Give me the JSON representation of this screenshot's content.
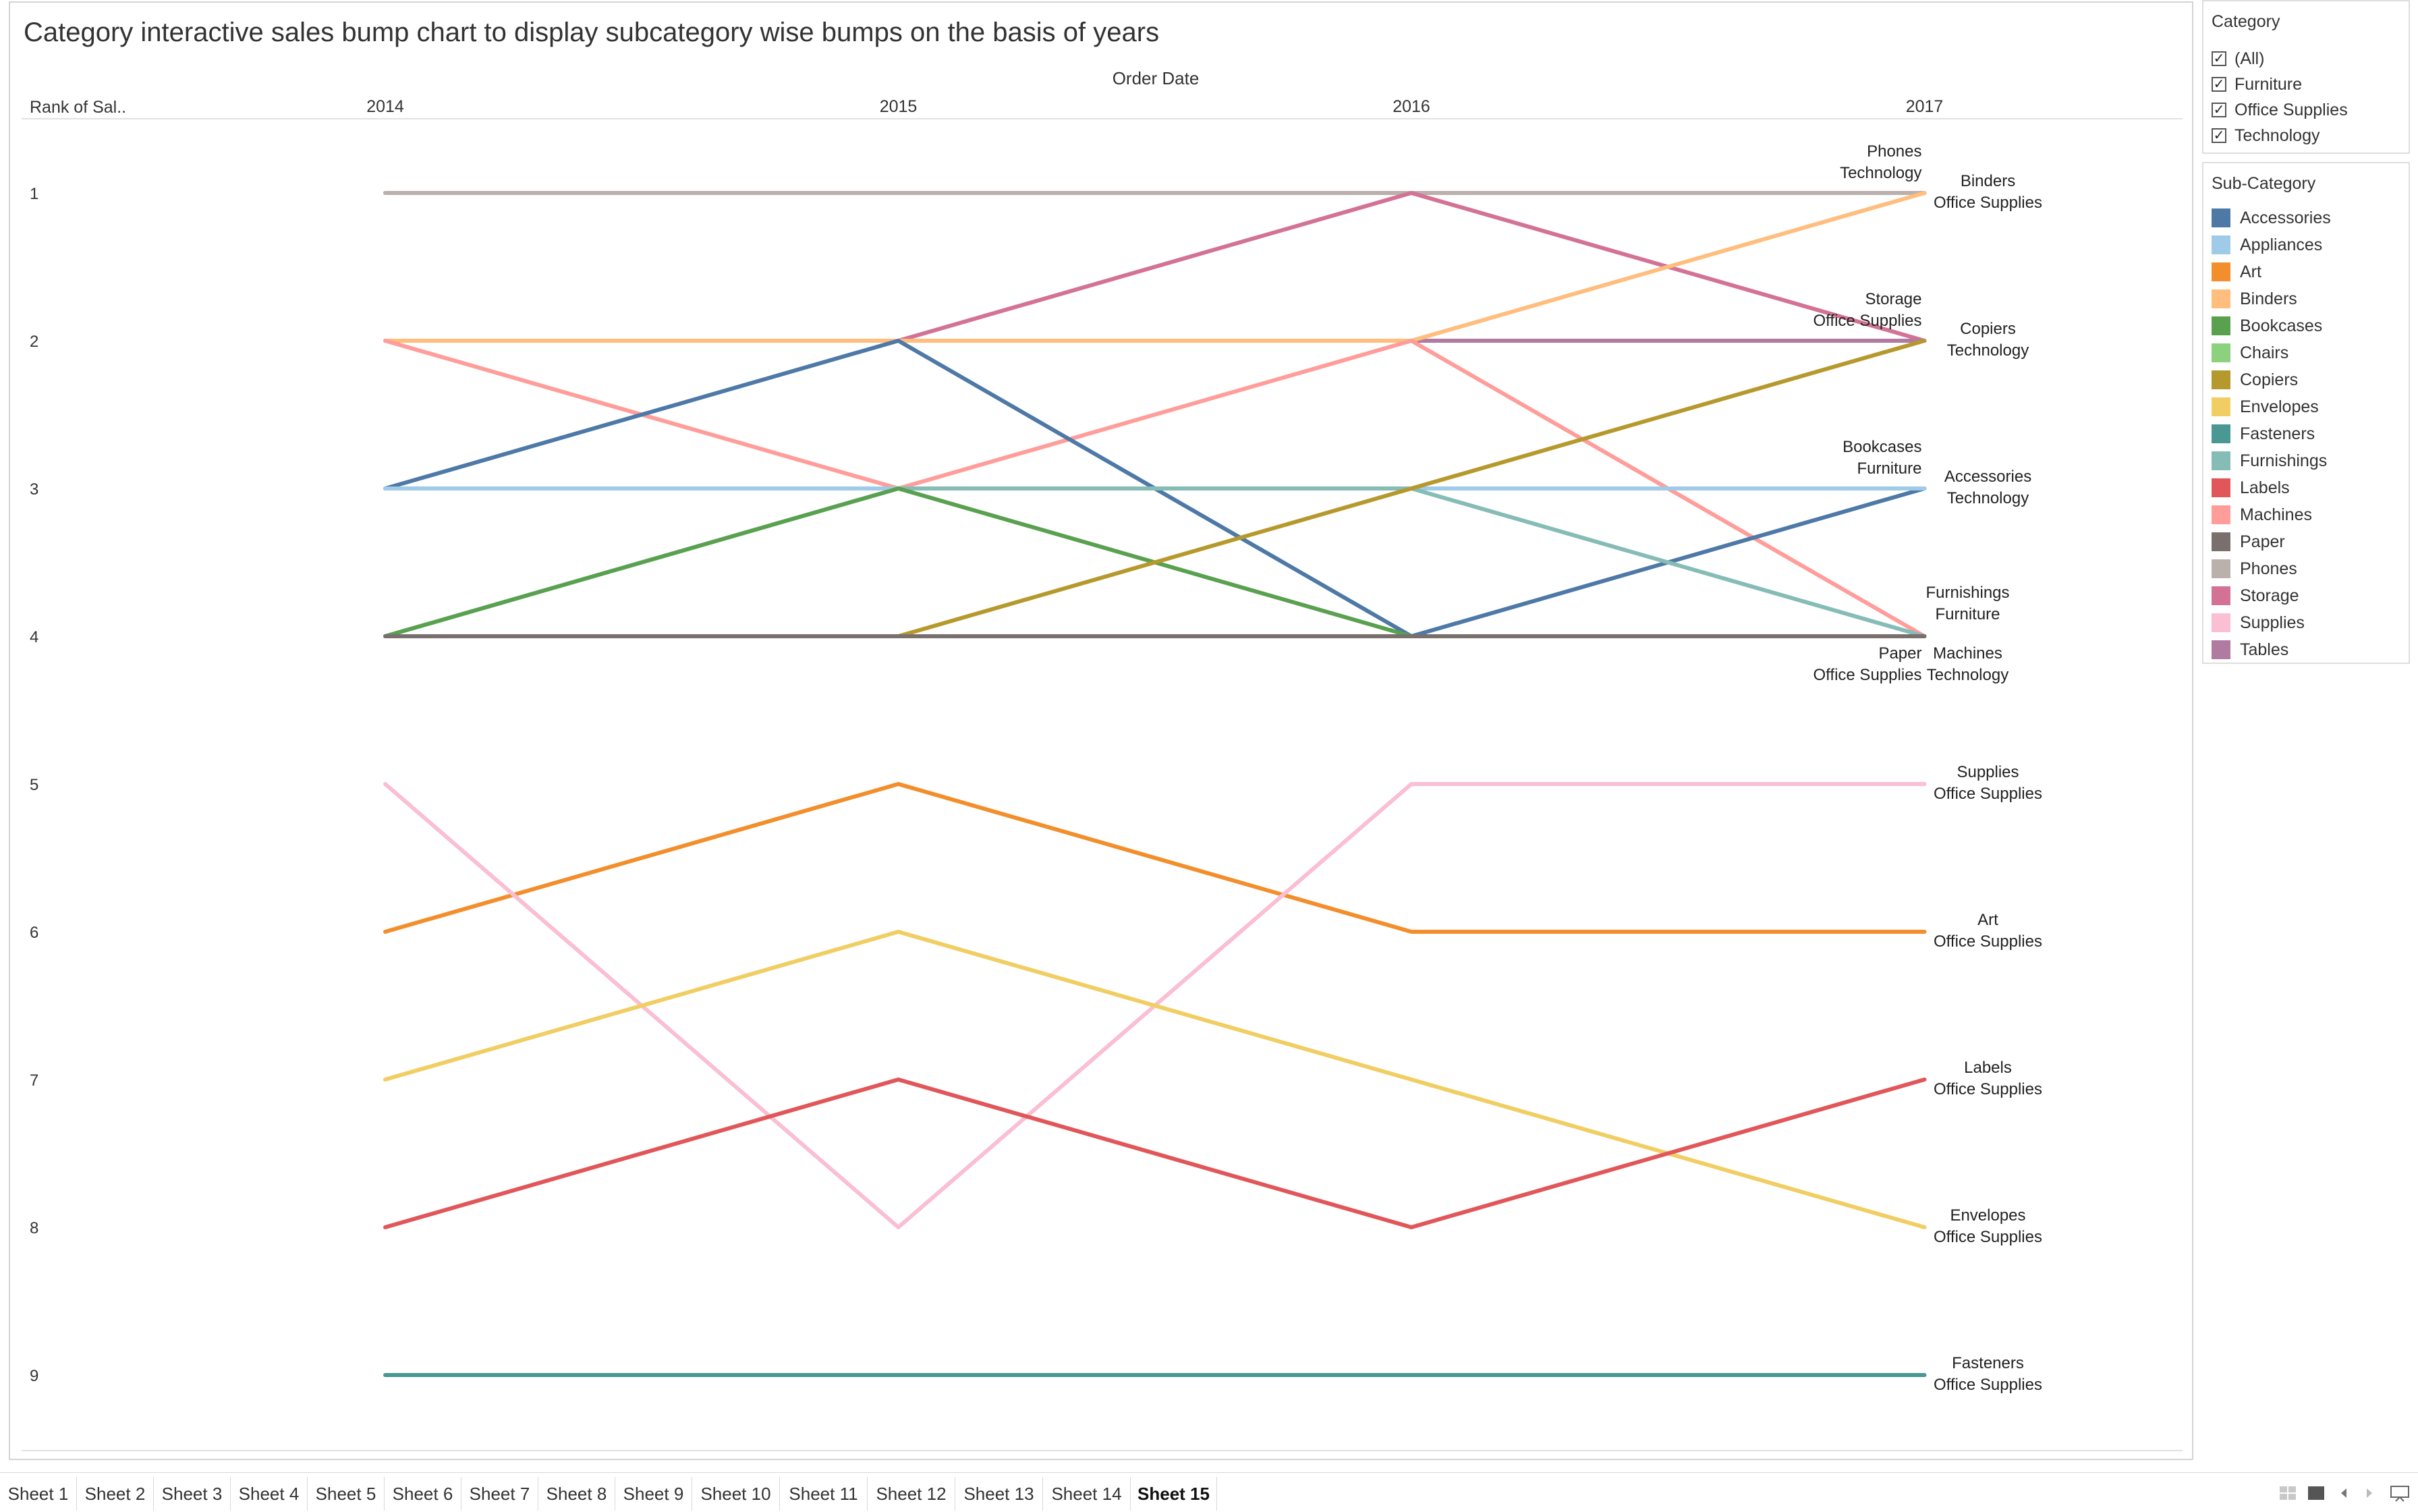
{
  "title": "Category interactive sales bump chart to display subcategory wise bumps on the basis of years",
  "chart_data": {
    "type": "line",
    "x_header": "Order Date",
    "row_header": "Rank of Sal..",
    "x": [
      "2014",
      "2015",
      "2016",
      "2017"
    ],
    "y_ticks": [
      "1",
      "2",
      "3",
      "4",
      "5",
      "6",
      "7",
      "8",
      "9"
    ],
    "ylim": [
      1,
      9
    ],
    "series": [
      {
        "name": "Chairs",
        "color": "#8cd17d",
        "values": [
          1,
          1,
          1,
          1
        ]
      },
      {
        "name": "Phones",
        "color": "#bab0ac",
        "values": [
          1,
          1,
          1,
          1
        ]
      },
      {
        "name": "Storage",
        "color": "#d37295",
        "values": [
          2,
          2,
          1,
          2
        ]
      },
      {
        "name": "Tables",
        "color": "#b07aa1",
        "values": [
          2,
          2,
          2,
          2
        ]
      },
      {
        "name": "Binders",
        "color": "#ffbe7d",
        "values": [
          2,
          2,
          2,
          1
        ]
      },
      {
        "name": "Machines",
        "color": "#ff9d9a",
        "values": [
          2,
          3,
          2,
          4
        ]
      },
      {
        "name": "Accessories",
        "color": "#4e79a7",
        "values": [
          3,
          2,
          4,
          3
        ]
      },
      {
        "name": "Appliances",
        "color": "#a0cbe8",
        "values": [
          3,
          3,
          3,
          3
        ]
      },
      {
        "name": "Furnishings",
        "color": "#86bcb6",
        "values": [
          4,
          3,
          3,
          4
        ]
      },
      {
        "name": "Bookcases",
        "color": "#59a14f",
        "values": [
          4,
          3,
          4,
          4
        ]
      },
      {
        "name": "Copiers",
        "color": "#b6992d",
        "values": [
          4,
          4,
          3,
          2
        ]
      },
      {
        "name": "Paper",
        "color": "#79706e",
        "values": [
          4,
          4,
          4,
          4
        ]
      },
      {
        "name": "Art",
        "color": "#f28e2b",
        "values": [
          6,
          5,
          6,
          6
        ]
      },
      {
        "name": "Supplies",
        "color": "#fabfd2",
        "values": [
          5,
          8,
          5,
          5
        ]
      },
      {
        "name": "Envelopes",
        "color": "#f1ce63",
        "values": [
          7,
          6,
          7,
          8
        ]
      },
      {
        "name": "Labels",
        "color": "#e15759",
        "values": [
          8,
          7,
          8,
          7
        ]
      },
      {
        "name": "Fasteners",
        "color": "#499894",
        "values": [
          9,
          9,
          9,
          9
        ]
      }
    ],
    "end_labels": [
      {
        "sub": "Phones",
        "cat": "Technology",
        "rank": 1,
        "side": "left"
      },
      {
        "sub": "Binders",
        "cat": "Office Supplies",
        "rank": 1,
        "side": "right"
      },
      {
        "sub": "Storage",
        "cat": "Office Supplies",
        "rank": 2,
        "side": "left"
      },
      {
        "sub": "Copiers",
        "cat": "Technology",
        "rank": 2,
        "side": "right"
      },
      {
        "sub": "Bookcases",
        "cat": "Furniture",
        "rank": 3,
        "side": "left"
      },
      {
        "sub": "Accessories",
        "cat": "Technology",
        "rank": 3,
        "side": "right"
      },
      {
        "sub": "Furnishings",
        "cat": "Furniture",
        "rank": 4,
        "side": "upper"
      },
      {
        "sub": "Paper",
        "cat": "Office Supplies",
        "rank": 4,
        "side": "lower-left"
      },
      {
        "sub": "Machines",
        "cat": "Technology",
        "rank": 4,
        "side": "lower-right"
      },
      {
        "sub": "Supplies",
        "cat": "Office Supplies",
        "rank": 5,
        "side": "right"
      },
      {
        "sub": "Art",
        "cat": "Office Supplies",
        "rank": 6,
        "side": "right"
      },
      {
        "sub": "Labels",
        "cat": "Office Supplies",
        "rank": 7,
        "side": "right"
      },
      {
        "sub": "Envelopes",
        "cat": "Office Supplies",
        "rank": 8,
        "side": "right"
      },
      {
        "sub": "Fasteners",
        "cat": "Office Supplies",
        "rank": 9,
        "side": "right"
      }
    ]
  },
  "category_filter": {
    "title": "Category",
    "options": [
      {
        "label": "(All)",
        "checked": true
      },
      {
        "label": "Furniture",
        "checked": true
      },
      {
        "label": "Office Supplies",
        "checked": true
      },
      {
        "label": "Technology",
        "checked": true
      }
    ]
  },
  "subcategory_legend": {
    "title": "Sub-Category",
    "items": [
      {
        "label": "Accessories",
        "color": "#4e79a7"
      },
      {
        "label": "Appliances",
        "color": "#a0cbe8"
      },
      {
        "label": "Art",
        "color": "#f28e2b"
      },
      {
        "label": "Binders",
        "color": "#ffbe7d"
      },
      {
        "label": "Bookcases",
        "color": "#59a14f"
      },
      {
        "label": "Chairs",
        "color": "#8cd17d"
      },
      {
        "label": "Copiers",
        "color": "#b6992d"
      },
      {
        "label": "Envelopes",
        "color": "#f1ce63"
      },
      {
        "label": "Fasteners",
        "color": "#499894"
      },
      {
        "label": "Furnishings",
        "color": "#86bcb6"
      },
      {
        "label": "Labels",
        "color": "#e15759"
      },
      {
        "label": "Machines",
        "color": "#ff9d9a"
      },
      {
        "label": "Paper",
        "color": "#79706e"
      },
      {
        "label": "Phones",
        "color": "#bab0ac"
      },
      {
        "label": "Storage",
        "color": "#d37295"
      },
      {
        "label": "Supplies",
        "color": "#fabfd2"
      },
      {
        "label": "Tables",
        "color": "#b07aa1"
      }
    ]
  },
  "tabs": {
    "items": [
      "Sheet 1",
      "Sheet 2",
      "Sheet 3",
      "Sheet 4",
      "Sheet 5",
      "Sheet 6",
      "Sheet 7",
      "Sheet 8",
      "Sheet 9",
      "Sheet 10",
      "Sheet 11",
      "Sheet 12",
      "Sheet 13",
      "Sheet 14",
      "Sheet 15"
    ],
    "active": "Sheet 15"
  },
  "icons": [
    "grid-view-icon",
    "filmstrip-view-icon",
    "prev-sheet-icon",
    "next-sheet-icon",
    "presentation-mode-icon"
  ]
}
